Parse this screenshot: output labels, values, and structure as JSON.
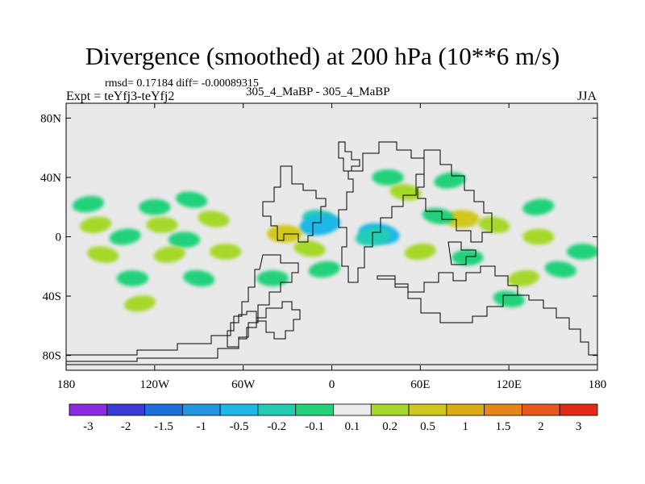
{
  "header": {
    "title": "Divergence (smoothed) at 200 hPa (10**6 m/s)",
    "stats": "rmsd= 0.17184 diff= -0.00089315",
    "expt": "Expt = teYfj3-teYfj2",
    "center_label": "305_4_MaBP - 305_4_MaBP",
    "season": "JJA"
  },
  "chart_data": {
    "type": "heatmap",
    "title": "Divergence (smoothed) at 200 hPa (10**6 m/s)",
    "xlabel": "",
    "ylabel": "",
    "xlim": [
      -180,
      180
    ],
    "ylim": [
      -90,
      90
    ],
    "x_ticks": [
      {
        "value": -180,
        "label": "180"
      },
      {
        "value": -120,
        "label": "120W"
      },
      {
        "value": -60,
        "label": "60W"
      },
      {
        "value": 0,
        "label": "0"
      },
      {
        "value": 60,
        "label": "60E"
      },
      {
        "value": 120,
        "label": "120E"
      },
      {
        "value": 180,
        "label": "180"
      }
    ],
    "y_ticks": [
      {
        "value": 80,
        "label": "80N"
      },
      {
        "value": 40,
        "label": "40N"
      },
      {
        "value": 0,
        "label": "0"
      },
      {
        "value": -40,
        "label": "40S"
      },
      {
        "value": -80,
        "label": "80S"
      }
    ],
    "colorbar": {
      "colors": [
        "#8a2be2",
        "#3a3ad8",
        "#1e6fdc",
        "#2296e0",
        "#1fb8e6",
        "#22cdb4",
        "#24d27a",
        "#ececec",
        "#a6d82a",
        "#d2c81e",
        "#dcac14",
        "#e4861a",
        "#e8581c",
        "#e42a14"
      ],
      "levels": [
        "-3",
        "-2",
        "-1.5",
        "-1",
        "-0.5",
        "-0.2",
        "-0.1",
        "0.1",
        "0.2",
        "0.5",
        "1",
        "1.5",
        "2",
        "3"
      ]
    },
    "features": [
      {
        "lon": -165,
        "lat": 22,
        "level": -0.2
      },
      {
        "lon": -120,
        "lat": 20,
        "level": -0.2
      },
      {
        "lon": -95,
        "lat": 25,
        "level": -0.2
      },
      {
        "lon": -160,
        "lat": 8,
        "level": 0.2
      },
      {
        "lon": -115,
        "lat": 8,
        "level": 0.2
      },
      {
        "lon": -80,
        "lat": 12,
        "level": 0.2
      },
      {
        "lon": -140,
        "lat": 0,
        "level": -0.2
      },
      {
        "lon": -100,
        "lat": -2,
        "level": -0.2
      },
      {
        "lon": -155,
        "lat": -12,
        "level": 0.2
      },
      {
        "lon": -110,
        "lat": -12,
        "level": 0.2
      },
      {
        "lon": -135,
        "lat": -28,
        "level": -0.2
      },
      {
        "lon": -90,
        "lat": -28,
        "level": -0.2
      },
      {
        "lon": -130,
        "lat": -45,
        "level": 0.2
      },
      {
        "lon": -72,
        "lat": -10,
        "level": 0.2
      },
      {
        "lon": -8,
        "lat": 12,
        "level": -0.5
      },
      {
        "lon": -8,
        "lat": 8,
        "level": -1
      },
      {
        "lon": -32,
        "lat": 2,
        "level": 0.5
      },
      {
        "lon": -15,
        "lat": -8,
        "level": 0.2
      },
      {
        "lon": -5,
        "lat": -22,
        "level": -0.2
      },
      {
        "lon": -40,
        "lat": -28,
        "level": -0.2
      },
      {
        "lon": 32,
        "lat": 2,
        "level": -1
      },
      {
        "lon": 28,
        "lat": 0,
        "level": -0.5
      },
      {
        "lon": 38,
        "lat": 40,
        "level": -0.2
      },
      {
        "lon": 50,
        "lat": 30,
        "level": 0.2
      },
      {
        "lon": 80,
        "lat": 38,
        "level": -0.2
      },
      {
        "lon": 88,
        "lat": 12,
        "level": 0.5
      },
      {
        "lon": 72,
        "lat": 14,
        "level": -0.2
      },
      {
        "lon": 60,
        "lat": -10,
        "level": 0.2
      },
      {
        "lon": 92,
        "lat": -14,
        "level": -0.2
      },
      {
        "lon": 110,
        "lat": 8,
        "level": 0.2
      },
      {
        "lon": 140,
        "lat": 20,
        "level": -0.2
      },
      {
        "lon": 140,
        "lat": 0,
        "level": 0.2
      },
      {
        "lon": 155,
        "lat": -22,
        "level": -0.2
      },
      {
        "lon": 130,
        "lat": -28,
        "level": 0.2
      },
      {
        "lon": 170,
        "lat": -10,
        "level": -0.2
      },
      {
        "lon": 120,
        "lat": -42,
        "level": -0.2
      }
    ]
  }
}
